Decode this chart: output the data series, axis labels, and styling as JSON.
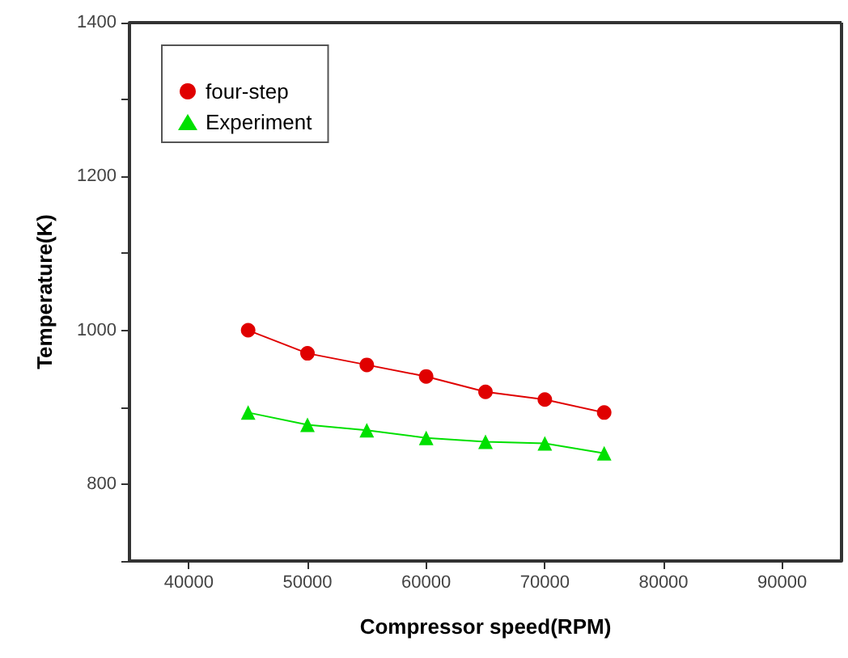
{
  "chart_data": {
    "type": "line",
    "xlabel": "Compressor speed(RPM)",
    "ylabel": "Temperature(K)",
    "x": [
      45000,
      50000,
      55000,
      60000,
      65000,
      70000,
      75000
    ],
    "series": [
      {
        "name": "four-step",
        "color": "#e00000",
        "marker": "circle",
        "values": [
          1000,
          970,
          955,
          940,
          920,
          910,
          893
        ]
      },
      {
        "name": "Experiment",
        "color": "#00e000",
        "marker": "triangle",
        "values": [
          893,
          877,
          870,
          860,
          855,
          853,
          840
        ]
      }
    ],
    "xlim": [
      35000,
      95000
    ],
    "xticks": [
      40000,
      50000,
      60000,
      70000,
      80000,
      90000
    ],
    "ylim": [
      700,
      1400
    ],
    "yticks": [
      {
        "value": 700,
        "label": null
      },
      800,
      {
        "value": 900,
        "label": null
      },
      1000,
      {
        "value": 1100,
        "label": null
      },
      1200,
      {
        "value": 1300,
        "label": null
      },
      1400
    ],
    "legend": "top left",
    "grid": false
  }
}
